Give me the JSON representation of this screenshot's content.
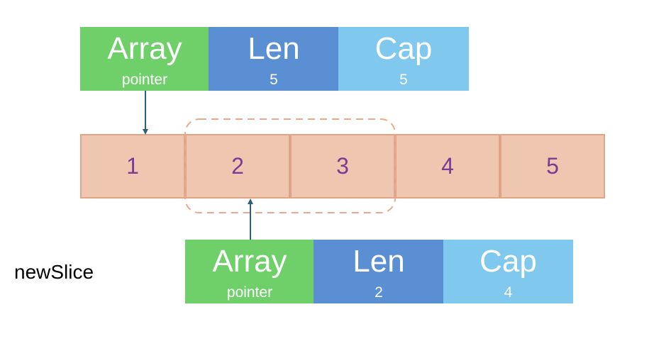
{
  "slice": {
    "array": {
      "title": "Array",
      "sub": "pointer"
    },
    "len": {
      "title": "Len",
      "value": "5"
    },
    "cap": {
      "title": "Cap",
      "value": "5"
    }
  },
  "array_cells": [
    "1",
    "2",
    "3",
    "4",
    "5"
  ],
  "new_slice": {
    "label": "newSlice",
    "array": {
      "title": "Array",
      "sub": "pointer"
    },
    "len": {
      "title": "Len",
      "value": "2"
    },
    "cap": {
      "title": "Cap",
      "value": "4"
    }
  },
  "colors": {
    "pointer_box": "#6fd06a",
    "len_box": "#5b8fd3",
    "cap_box": "#80c8ee",
    "cell_fill": "#efc6b0",
    "cell_border": "#e0a488",
    "cell_text": "#7b3a94",
    "arrow": "#2f5f78"
  }
}
